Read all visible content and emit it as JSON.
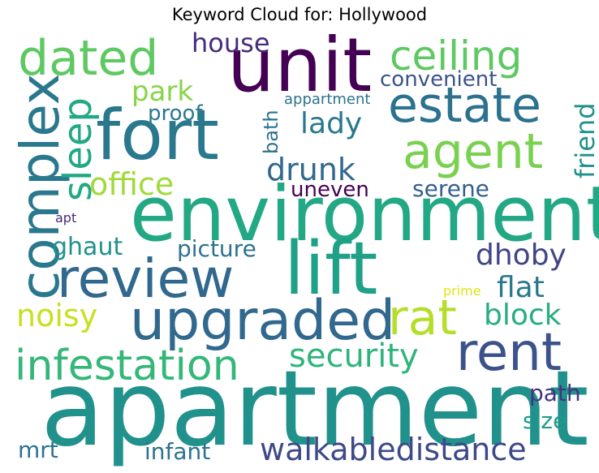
{
  "chart_data": {
    "type": "wordcloud",
    "title": "Keyword Cloud for: Hollywood",
    "words": [
      {
        "text": "apartment",
        "weight": 100,
        "color": "#21918c"
      },
      {
        "text": "environment",
        "weight": 90,
        "color": "#22a884"
      },
      {
        "text": "unit",
        "weight": 86,
        "color": "#440154"
      },
      {
        "text": "lift",
        "weight": 84,
        "color": "#1fa187"
      },
      {
        "text": "fort",
        "weight": 82,
        "color": "#2a788e"
      },
      {
        "text": "upgraded",
        "weight": 68,
        "color": "#31688e"
      },
      {
        "text": "review",
        "weight": 66,
        "color": "#31688e"
      },
      {
        "text": "complex",
        "weight": 66,
        "color": "#2a788e"
      },
      {
        "text": "rent",
        "weight": 64,
        "color": "#3b528b"
      },
      {
        "text": "estate",
        "weight": 60,
        "color": "#2c728e"
      },
      {
        "text": "agent",
        "weight": 60,
        "color": "#7ad151"
      },
      {
        "text": "dated",
        "weight": 60,
        "color": "#5ec962"
      },
      {
        "text": "rat",
        "weight": 60,
        "color": "#b5de2b"
      },
      {
        "text": "infestation",
        "weight": 52,
        "color": "#35b779"
      },
      {
        "text": "ceiling",
        "weight": 50,
        "color": "#5ec962"
      },
      {
        "text": "sleep",
        "weight": 48,
        "color": "#22a884"
      },
      {
        "text": "security",
        "weight": 40,
        "color": "#2fb47c"
      },
      {
        "text": "walkabledistance",
        "weight": 38,
        "color": "#3e4989"
      },
      {
        "text": "office",
        "weight": 38,
        "color": "#a0da39"
      },
      {
        "text": "drunk",
        "weight": 38,
        "color": "#31688e"
      },
      {
        "text": "noisy",
        "weight": 38,
        "color": "#c8e020"
      },
      {
        "text": "dhoby",
        "weight": 36,
        "color": "#414487"
      },
      {
        "text": "lady",
        "weight": 36,
        "color": "#2a788e"
      },
      {
        "text": "block",
        "weight": 36,
        "color": "#27ad81"
      },
      {
        "text": "flat",
        "weight": 36,
        "color": "#2a788e"
      },
      {
        "text": "park",
        "weight": 34,
        "color": "#86d549"
      },
      {
        "text": "friend",
        "weight": 32,
        "color": "#21918c"
      },
      {
        "text": "house",
        "weight": 32,
        "color": "#472d7b"
      },
      {
        "text": "ghaut",
        "weight": 30,
        "color": "#21918c"
      },
      {
        "text": "picture",
        "weight": 28,
        "color": "#2c728e"
      },
      {
        "text": "serene",
        "weight": 28,
        "color": "#355f8d"
      },
      {
        "text": "infant",
        "weight": 28,
        "color": "#2c728e"
      },
      {
        "text": "mrt",
        "weight": 28,
        "color": "#2c728e"
      },
      {
        "text": "path",
        "weight": 28,
        "color": "#46337f"
      },
      {
        "text": "size",
        "weight": 28,
        "color": "#1f9a8a"
      },
      {
        "text": "convenient",
        "weight": 26,
        "color": "#3b528b"
      },
      {
        "text": "proof",
        "weight": 26,
        "color": "#2a788e"
      },
      {
        "text": "uneven",
        "weight": 26,
        "color": "#440154"
      },
      {
        "text": "bath",
        "weight": 24,
        "color": "#2c728e"
      },
      {
        "text": "appartment",
        "weight": 18,
        "color": "#2c728e"
      },
      {
        "text": "prime",
        "weight": 16,
        "color": "#dfe318"
      },
      {
        "text": "apt",
        "weight": 16,
        "color": "#482878"
      }
    ]
  }
}
